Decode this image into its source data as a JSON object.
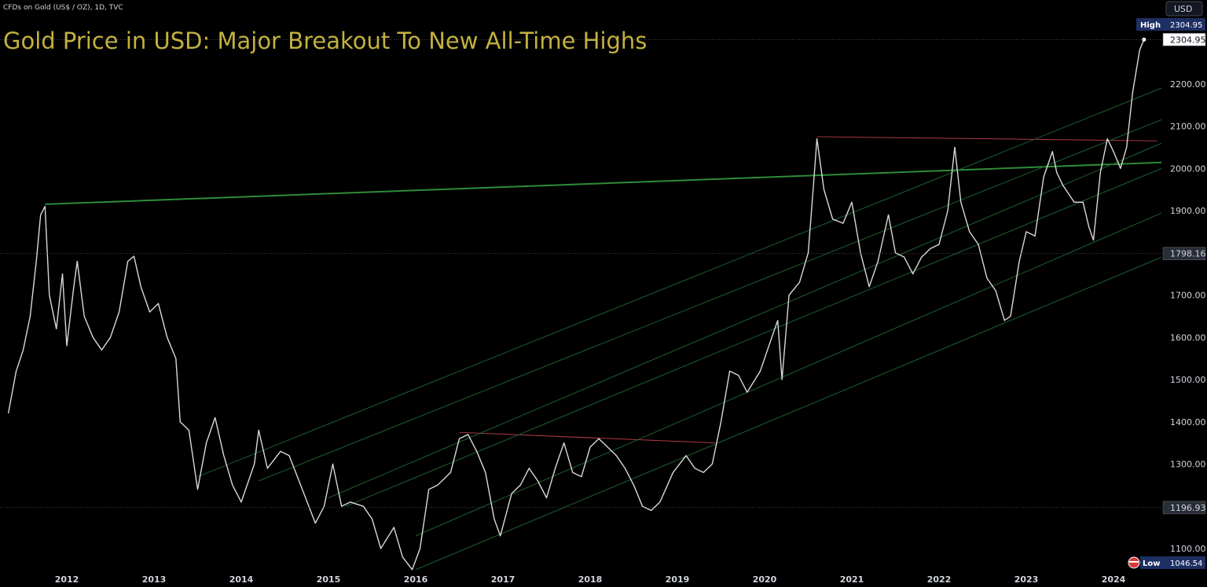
{
  "symbol_info": "CFDs on Gold (US$ / OZ), 1D, TVC",
  "currency": "USD",
  "chart_data": {
    "type": "line",
    "title": "Gold Price in USD: Major Breakout To New All-Time Highs",
    "ylim": [
      1040,
      2340
    ],
    "xlim": [
      2011.33,
      2024.67
    ],
    "y_ticks": [
      "1100.00",
      "1300.00",
      "1400.00",
      "1500.00",
      "1600.00",
      "1700.00",
      "1900.00",
      "2000.00",
      "2100.00",
      "2200.00"
    ],
    "x_ticks": [
      "2012",
      "2013",
      "2014",
      "2015",
      "2016",
      "2017",
      "2018",
      "2019",
      "2020",
      "2021",
      "2022",
      "2023",
      "2024"
    ],
    "marked_levels": [
      {
        "label": "",
        "value": "2304.95"
      },
      {
        "label": "",
        "value": "1798.16"
      },
      {
        "label": "",
        "value": "1196.93"
      }
    ],
    "high": {
      "label": "High",
      "value": "2304.95"
    },
    "low": {
      "label": "Low",
      "value": "1046.54"
    },
    "series": [
      {
        "color": "#d9d9d9",
        "points": [
          [
            2011.33,
            1420
          ],
          [
            2011.42,
            1520
          ],
          [
            2011.5,
            1570
          ],
          [
            2011.58,
            1650
          ],
          [
            2011.65,
            1780
          ],
          [
            2011.7,
            1890
          ],
          [
            2011.75,
            1910
          ],
          [
            2011.8,
            1700
          ],
          [
            2011.88,
            1620
          ],
          [
            2011.95,
            1750
          ],
          [
            2012.0,
            1580
          ],
          [
            2012.08,
            1720
          ],
          [
            2012.12,
            1780
          ],
          [
            2012.2,
            1650
          ],
          [
            2012.3,
            1600
          ],
          [
            2012.4,
            1570
          ],
          [
            2012.5,
            1600
          ],
          [
            2012.6,
            1660
          ],
          [
            2012.7,
            1780
          ],
          [
            2012.77,
            1792
          ],
          [
            2012.85,
            1720
          ],
          [
            2012.95,
            1660
          ],
          [
            2013.05,
            1680
          ],
          [
            2013.15,
            1600
          ],
          [
            2013.25,
            1550
          ],
          [
            2013.3,
            1400
          ],
          [
            2013.4,
            1380
          ],
          [
            2013.5,
            1240
          ],
          [
            2013.6,
            1350
          ],
          [
            2013.7,
            1410
          ],
          [
            2013.8,
            1320
          ],
          [
            2013.9,
            1250
          ],
          [
            2014.0,
            1210
          ],
          [
            2014.15,
            1300
          ],
          [
            2014.2,
            1380
          ],
          [
            2014.3,
            1290
          ],
          [
            2014.45,
            1330
          ],
          [
            2014.55,
            1320
          ],
          [
            2014.7,
            1240
          ],
          [
            2014.85,
            1160
          ],
          [
            2014.95,
            1200
          ],
          [
            2015.05,
            1300
          ],
          [
            2015.15,
            1200
          ],
          [
            2015.25,
            1210
          ],
          [
            2015.4,
            1200
          ],
          [
            2015.5,
            1170
          ],
          [
            2015.6,
            1100
          ],
          [
            2015.75,
            1150
          ],
          [
            2015.85,
            1080
          ],
          [
            2015.96,
            1050
          ],
          [
            2016.05,
            1100
          ],
          [
            2016.15,
            1240
          ],
          [
            2016.25,
            1250
          ],
          [
            2016.4,
            1280
          ],
          [
            2016.5,
            1360
          ],
          [
            2016.6,
            1370
          ],
          [
            2016.7,
            1330
          ],
          [
            2016.8,
            1280
          ],
          [
            2016.9,
            1170
          ],
          [
            2016.97,
            1130
          ],
          [
            2017.1,
            1230
          ],
          [
            2017.2,
            1250
          ],
          [
            2017.3,
            1290
          ],
          [
            2017.4,
            1260
          ],
          [
            2017.5,
            1220
          ],
          [
            2017.6,
            1290
          ],
          [
            2017.7,
            1350
          ],
          [
            2017.8,
            1280
          ],
          [
            2017.9,
            1270
          ],
          [
            2018.0,
            1340
          ],
          [
            2018.1,
            1360
          ],
          [
            2018.2,
            1340
          ],
          [
            2018.3,
            1320
          ],
          [
            2018.4,
            1290
          ],
          [
            2018.5,
            1250
          ],
          [
            2018.6,
            1200
          ],
          [
            2018.7,
            1190
          ],
          [
            2018.8,
            1210
          ],
          [
            2018.95,
            1280
          ],
          [
            2019.1,
            1320
          ],
          [
            2019.2,
            1290
          ],
          [
            2019.3,
            1280
          ],
          [
            2019.4,
            1300
          ],
          [
            2019.5,
            1400
          ],
          [
            2019.6,
            1520
          ],
          [
            2019.7,
            1510
          ],
          [
            2019.8,
            1470
          ],
          [
            2019.95,
            1520
          ],
          [
            2020.05,
            1580
          ],
          [
            2020.15,
            1640
          ],
          [
            2020.2,
            1500
          ],
          [
            2020.28,
            1700
          ],
          [
            2020.4,
            1730
          ],
          [
            2020.5,
            1800
          ],
          [
            2020.56,
            1960
          ],
          [
            2020.6,
            2070
          ],
          [
            2020.68,
            1950
          ],
          [
            2020.78,
            1880
          ],
          [
            2020.9,
            1870
          ],
          [
            2021.0,
            1920
          ],
          [
            2021.1,
            1800
          ],
          [
            2021.2,
            1720
          ],
          [
            2021.3,
            1780
          ],
          [
            2021.42,
            1890
          ],
          [
            2021.5,
            1800
          ],
          [
            2021.6,
            1790
          ],
          [
            2021.7,
            1750
          ],
          [
            2021.8,
            1790
          ],
          [
            2021.9,
            1810
          ],
          [
            2022.0,
            1820
          ],
          [
            2022.1,
            1900
          ],
          [
            2022.18,
            2050
          ],
          [
            2022.25,
            1920
          ],
          [
            2022.35,
            1850
          ],
          [
            2022.45,
            1820
          ],
          [
            2022.55,
            1740
          ],
          [
            2022.65,
            1710
          ],
          [
            2022.75,
            1640
          ],
          [
            2022.82,
            1650
          ],
          [
            2022.92,
            1780
          ],
          [
            2023.0,
            1850
          ],
          [
            2023.1,
            1840
          ],
          [
            2023.2,
            1980
          ],
          [
            2023.3,
            2040
          ],
          [
            2023.35,
            1990
          ],
          [
            2023.42,
            1960
          ],
          [
            2023.55,
            1920
          ],
          [
            2023.65,
            1920
          ],
          [
            2023.72,
            1860
          ],
          [
            2023.77,
            1830
          ],
          [
            2023.85,
            1990
          ],
          [
            2023.93,
            2070
          ],
          [
            2024.0,
            2040
          ],
          [
            2024.08,
            2000
          ],
          [
            2024.15,
            2050
          ],
          [
            2024.22,
            2180
          ],
          [
            2024.3,
            2280
          ],
          [
            2024.35,
            2305
          ]
        ]
      }
    ],
    "trendlines": [
      {
        "color": "#2e8b3a",
        "width": 2,
        "points": [
          [
            2011.75,
            1915
          ],
          [
            2024.67,
            2015
          ]
        ]
      },
      {
        "color": "#b03a48",
        "width": 1,
        "points": [
          [
            2020.6,
            2075
          ],
          [
            2024.5,
            2065
          ]
        ]
      },
      {
        "color": "#b03a48",
        "width": 1,
        "points": [
          [
            2016.5,
            1375
          ],
          [
            2019.43,
            1350
          ]
        ]
      },
      {
        "color": "#1e5e30",
        "width": 1,
        "points": [
          [
            2013.5,
            1270
          ],
          [
            2024.67,
            2200
          ]
        ]
      },
      {
        "color": "#1e5e30",
        "width": 1,
        "points": [
          [
            2014.2,
            1260
          ],
          [
            2024.67,
            2125
          ]
        ]
      },
      {
        "color": "#1e5e30",
        "width": 1,
        "points": [
          [
            2015.0,
            1220
          ],
          [
            2024.67,
            2070
          ]
        ]
      },
      {
        "color": "#1e5e30",
        "width": 1,
        "points": [
          [
            2015.2,
            1200
          ],
          [
            2024.67,
            2010
          ]
        ]
      },
      {
        "color": "#1e5e30",
        "width": 1,
        "points": [
          [
            2016.0,
            1130
          ],
          [
            2024.67,
            1905
          ]
        ]
      },
      {
        "color": "#1e5e30",
        "width": 1,
        "points": [
          [
            2016.0,
            1050
          ],
          [
            2024.67,
            1800
          ]
        ]
      }
    ]
  }
}
